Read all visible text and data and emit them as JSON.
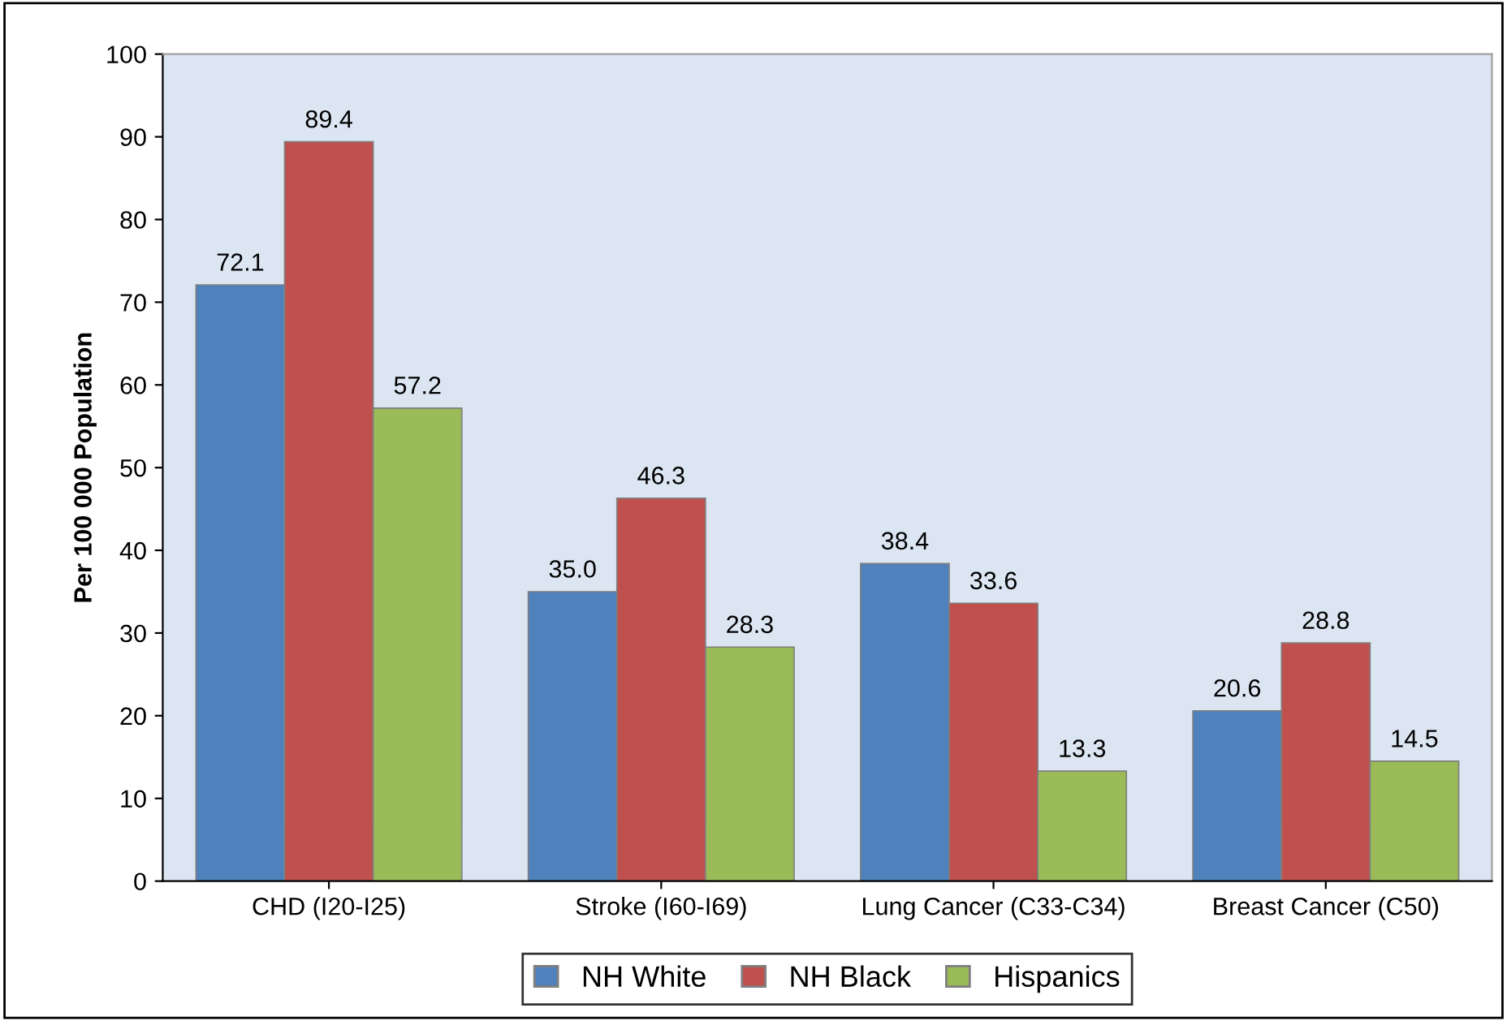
{
  "chart_data": {
    "type": "bar",
    "ylabel": "Per 100 000 Population",
    "categories": [
      "CHD (I20-I25)",
      "Stroke (I60-I69)",
      "Lung Cancer (C33-C34)",
      "Breast Cancer (C50)"
    ],
    "series": [
      {
        "name": "NH White",
        "color": "#4f81bd",
        "values": [
          72.1,
          35.0,
          38.4,
          20.6
        ],
        "value_labels": [
          "72.1",
          "35.0",
          "38.4",
          "20.6"
        ]
      },
      {
        "name": "NH Black",
        "color": "#c0504d",
        "values": [
          89.4,
          46.3,
          33.6,
          28.8
        ],
        "value_labels": [
          "89.4",
          "46.3",
          "33.6",
          "28.8"
        ]
      },
      {
        "name": "Hispanics",
        "color": "#9bbb59",
        "values": [
          57.2,
          28.3,
          13.3,
          14.5
        ],
        "value_labels": [
          "57.2",
          "28.3",
          "13.3",
          "14.5"
        ]
      }
    ],
    "ylim": [
      0,
      100
    ],
    "yticks": [
      0,
      10,
      20,
      30,
      40,
      50,
      60,
      70,
      80,
      90,
      100
    ],
    "grid": false,
    "legend": "bottom"
  }
}
